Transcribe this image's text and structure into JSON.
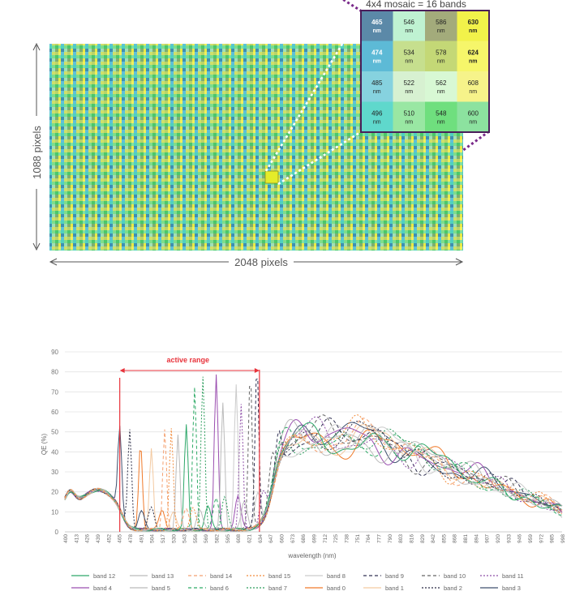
{
  "mosaic": {
    "title": "4x4 mosaic = 16 bands",
    "height_label": "1088 pixels",
    "width_label": "2048 pixels",
    "unit": "nm",
    "cells": [
      [
        {
          "nm": "465",
          "color": "#5b89a8",
          "bold": true,
          "light": true
        },
        {
          "nm": "546",
          "color": "#bff2d2"
        },
        {
          "nm": "586",
          "color": "#a3ab7b"
        },
        {
          "nm": "630",
          "color": "#f2f24a",
          "bold": true
        }
      ],
      [
        {
          "nm": "474",
          "color": "#5dbad6",
          "bold": true,
          "light": true
        },
        {
          "nm": "534",
          "color": "#c6df8e"
        },
        {
          "nm": "578",
          "color": "#c4d876"
        },
        {
          "nm": "624",
          "color": "#f6f66a",
          "bold": true
        }
      ],
      [
        {
          "nm": "485",
          "color": "#86d2df"
        },
        {
          "nm": "522",
          "color": "#d7f1d1"
        },
        {
          "nm": "562",
          "color": "#d8f8d4"
        },
        {
          "nm": "608",
          "color": "#f6f38a"
        }
      ],
      [
        {
          "nm": "496",
          "color": "#5fd8cc"
        },
        {
          "nm": "510",
          "color": "#99e7a3"
        },
        {
          "nm": "548",
          "color": "#6fdf7e"
        },
        {
          "nm": "600",
          "color": "#8ce29f"
        }
      ]
    ]
  },
  "chart_data": {
    "type": "line",
    "ylabel": "QE (%)",
    "xlabel": "wavelength (nm)",
    "ylim": [
      0,
      90
    ],
    "yticks": [
      0,
      10,
      20,
      30,
      40,
      50,
      60,
      70,
      80,
      90
    ],
    "x_ticks": [
      400,
      413,
      426,
      439,
      452,
      465,
      478,
      491,
      504,
      517,
      530,
      543,
      556,
      569,
      582,
      595,
      608,
      621,
      634,
      647,
      660,
      673,
      686,
      699,
      712,
      725,
      738,
      751,
      764,
      777,
      790,
      803,
      816,
      829,
      842,
      855,
      868,
      881,
      894,
      907,
      920,
      933,
      946,
      959,
      972,
      985,
      998
    ],
    "xlim": [
      400,
      998
    ],
    "annotation": {
      "text": "active range",
      "from": 466,
      "to": 634
    },
    "legend_rows": [
      [
        {
          "name": "band 12",
          "color": "#2ea86a",
          "dash": ""
        },
        {
          "name": "band 13",
          "color": "#bbbbbb",
          "dash": ""
        },
        {
          "name": "band 14",
          "color": "#f4a070",
          "dash": "4,3"
        },
        {
          "name": "band 15",
          "color": "#f28c3c",
          "dash": "2,2"
        },
        {
          "name": "band 8",
          "color": "#cccccc",
          "dash": ""
        },
        {
          "name": "band 9",
          "color": "#333355",
          "dash": "4,3"
        },
        {
          "name": "band 10",
          "color": "#666666",
          "dash": "4,3"
        },
        {
          "name": "band 11",
          "color": "#8f4fa8",
          "dash": "2,2"
        }
      ],
      [
        {
          "name": "band 4",
          "color": "#9b4fb0",
          "dash": ""
        },
        {
          "name": "band 5",
          "color": "#bbbbbb",
          "dash": ""
        },
        {
          "name": "band 6",
          "color": "#2eaa66",
          "dash": "4,3"
        },
        {
          "name": "band 7",
          "color": "#2e9e5e",
          "dash": "2,2"
        },
        {
          "name": "band 0",
          "color": "#f07a2a",
          "dash": ""
        },
        {
          "name": "band 1",
          "color": "#f3c9a0",
          "dash": ""
        },
        {
          "name": "band 2",
          "color": "#2a2a44",
          "dash": "2,2"
        },
        {
          "name": "band 3",
          "color": "#3e4f6e",
          "dash": ""
        }
      ]
    ],
    "series": [
      {
        "name": "band 0",
        "peak": 491,
        "value": 44,
        "color": "#f07a2a",
        "dash": ""
      },
      {
        "name": "band 1",
        "peak": 504,
        "value": 40,
        "color": "#f3c9a0",
        "dash": ""
      },
      {
        "name": "band 2",
        "peak": 478,
        "value": 49,
        "color": "#2a2a44",
        "dash": "2,2"
      },
      {
        "name": "band 3",
        "peak": 466,
        "value": 41,
        "color": "#3e4f6e",
        "dash": ""
      },
      {
        "name": "band 4",
        "peak": 582,
        "value": 77,
        "color": "#9b4fb0",
        "dash": ""
      },
      {
        "name": "band 5",
        "peak": 590,
        "value": 64,
        "color": "#bbbbbb",
        "dash": ""
      },
      {
        "name": "band 6",
        "peak": 556,
        "value": 72,
        "color": "#2eaa66",
        "dash": "4,3"
      },
      {
        "name": "band 7",
        "peak": 566,
        "value": 76,
        "color": "#2e9e5e",
        "dash": "2,2"
      },
      {
        "name": "band 8",
        "peak": 606,
        "value": 73,
        "color": "#cccccc",
        "dash": ""
      },
      {
        "name": "band 9",
        "peak": 631,
        "value": 81,
        "color": "#333355",
        "dash": "4,3"
      },
      {
        "name": "band 10",
        "peak": 623,
        "value": 78,
        "color": "#666666",
        "dash": "4,3"
      },
      {
        "name": "band 11",
        "peak": 612,
        "value": 62,
        "color": "#8f4fa8",
        "dash": "2,2"
      },
      {
        "name": "band 12",
        "peak": 546,
        "value": 52,
        "color": "#2ea86a",
        "dash": ""
      },
      {
        "name": "band 13",
        "peak": 536,
        "value": 47,
        "color": "#bbbbbb",
        "dash": ""
      },
      {
        "name": "band 14",
        "peak": 520,
        "value": 51,
        "color": "#f4a070",
        "dash": "4,3"
      },
      {
        "name": "band 15",
        "peak": 528,
        "value": 50,
        "color": "#f28c3c",
        "dash": "2,2"
      }
    ]
  }
}
